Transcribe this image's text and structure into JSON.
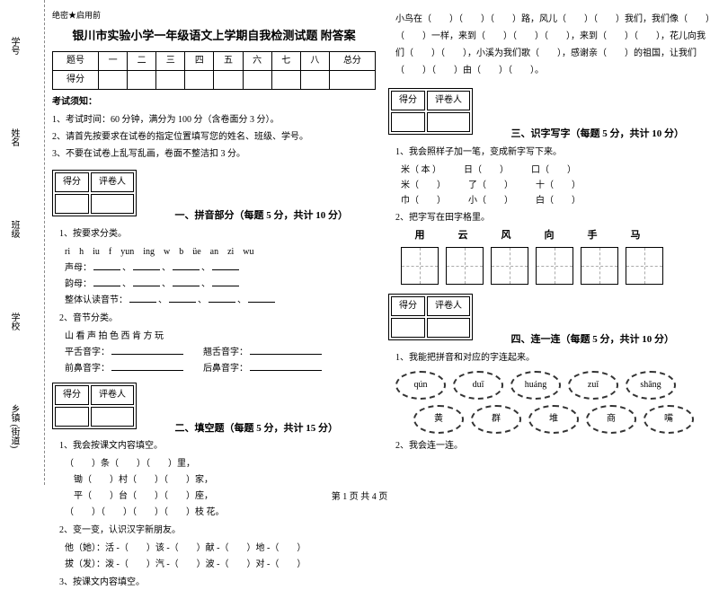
{
  "sidebar": {
    "labels": [
      "学号",
      "姓名",
      "班级",
      "学校",
      "乡镇 (街道)"
    ],
    "dashmarks": [
      "题",
      "密",
      "卷",
      "内",
      "线",
      "封",
      "答"
    ]
  },
  "header_tag": "绝密★启用前",
  "title": "银川市实验小学一年级语文上学期自我检测试题 附答案",
  "score_table": {
    "headers": [
      "题号",
      "一",
      "二",
      "三",
      "四",
      "五",
      "六",
      "七",
      "八",
      "总分"
    ],
    "row_label": "得分"
  },
  "notice": {
    "title": "考试须知：",
    "items": [
      "1、考试时间：60 分钟，满分为 100 分（含卷面分 3 分）。",
      "2、请首先按要求在试卷的指定位置填写您的姓名、班级、学号。",
      "3、不要在试卷上乱写乱画，卷面不整洁扣 3 分。"
    ]
  },
  "scorebox": {
    "col1": "得分",
    "col2": "评卷人"
  },
  "sections": {
    "s1": {
      "title": "一、拼音部分（每题 5 分，共计 10 分）"
    },
    "s2": {
      "title": "二、填空题（每题 5 分，共计 15 分）"
    },
    "s3": {
      "title": "三、识字写字（每题 5 分，共计 10 分）"
    },
    "s4": {
      "title": "四、连一连（每题 5 分，共计 10 分）"
    }
  },
  "q1_1": {
    "prompt": "1、按要求分类。",
    "letters": "ri　h　iu　f　yun　ing　w　b　üe　an　zi　wu",
    "lines": [
      {
        "label": "声母：",
        "blanks": 4
      },
      {
        "label": "韵母：",
        "blanks": 4
      },
      {
        "label": "整体认读音节：",
        "blanks": 4
      }
    ]
  },
  "q1_2": {
    "prompt": "2、音节分类。",
    "chars": "山 看 声 拍 色 西 肯 方 玩",
    "rows": [
      {
        "l": "平舌音字：",
        "r": "翘舌音字："
      },
      {
        "l": "前鼻音字：",
        "r": "后鼻音字："
      }
    ]
  },
  "q2_1": {
    "prompt": "1、我会按课文内容填空。",
    "lines": [
      "（　　）条（　　）（　　）里，",
      "　锄（　　）村（　　）（　　）家，",
      "　平（　　）台（　　）（　　）座，",
      "（　　）（　　）（　　）（　　）枝 花。"
    ]
  },
  "q2_2": {
    "prompt": "2、变一变，认识汉字新朋友。",
    "lines": [
      "他（她）：活 -（　　）该 -（　　）献 -（　　）地 -（　　）",
      "拔（发）：泼 -（　　）汽 -（　　）波 -（　　）对 -（　　）"
    ]
  },
  "q2_3": {
    "prompt": "3、按课文内容填空。"
  },
  "right_fill": "小鸟在（　　）（　　）（　　）路，风儿（　　）（　　）我们，我们像（　　）（　　）一样，来到（　　）（　　）（　　），来到（　　）（　　），花儿向我们（　　）（　　），小溪为我们歌（　　），感谢亲（　　）的祖国，让我们（　　）（　　）由（　　）（　　）。",
  "q3_1": {
    "prompt": "1、我会照样子加一笔，变成新字写下来。",
    "rows": [
      {
        "a": "米（ 本 ）",
        "b": "日",
        "c": "口"
      },
      {
        "a": "米（　　）",
        "b": "了",
        "c": "十"
      },
      {
        "a": "巾（　　）",
        "b": "小",
        "c": "白"
      }
    ]
  },
  "q3_2": {
    "prompt": "2、把字写在田字格里。",
    "chars": [
      "用",
      "云",
      "风",
      "向",
      "手",
      "马"
    ]
  },
  "q4_1": {
    "prompt": "1、我能把拼音和对应的字连起来。",
    "pinyin": [
      "qún",
      "duī",
      "huáng",
      "zuǐ",
      "shāng"
    ],
    "chars": [
      "黄",
      "群",
      "堆",
      "商",
      "嘴"
    ]
  },
  "q4_2": {
    "prompt": "2、我会连一连。"
  },
  "footer": "第 1 页 共 4 页"
}
